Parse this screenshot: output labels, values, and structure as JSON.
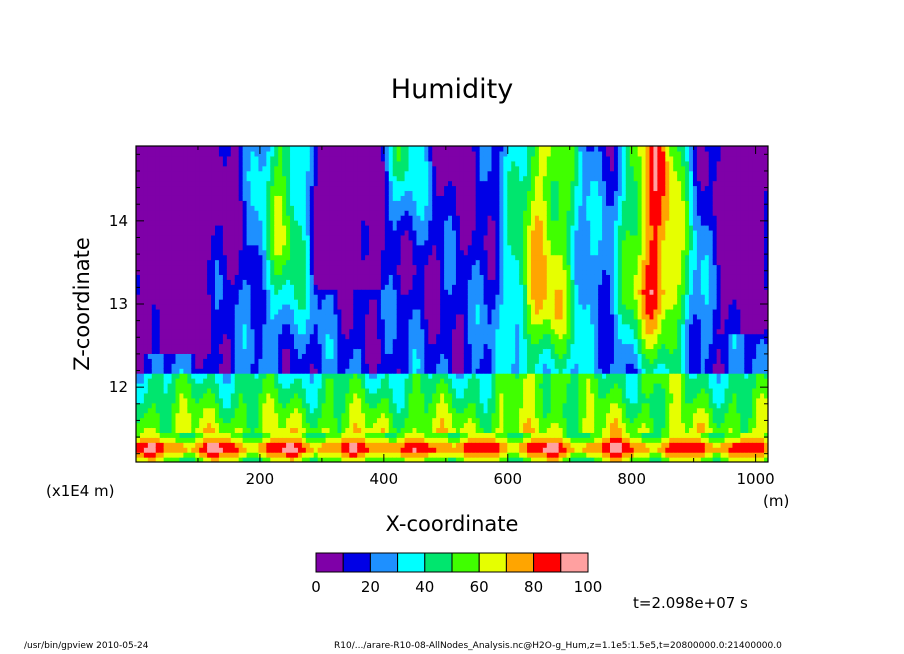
{
  "chart_data": {
    "type": "heatmap",
    "title": "Humidity",
    "xlabel": "X-coordinate",
    "ylabel": "Z-coordinate",
    "x_unit_note": "(x1E4 m)",
    "x_unit": "(m)",
    "xlim": [
      0,
      1020
    ],
    "ylim": [
      11.1,
      14.9
    ],
    "x_ticks": [
      "200",
      "400",
      "600",
      "800",
      "1000"
    ],
    "x_tick_values": [
      200,
      400,
      600,
      800,
      1000
    ],
    "y_ticks": [
      "12",
      "13",
      "14"
    ],
    "y_tick_values": [
      12,
      13,
      14
    ],
    "color_levels": [
      0,
      10,
      20,
      30,
      40,
      50,
      60,
      70,
      80,
      90,
      100
    ],
    "colorbar_labels": [
      "0",
      "20",
      "40",
      "60",
      "80",
      "100"
    ],
    "colorbar_label_values": [
      0,
      20,
      40,
      60,
      80,
      100
    ],
    "colors": [
      "#7f00a8",
      "#0000e6",
      "#1e90ff",
      "#00ffff",
      "#00e66e",
      "#40ff00",
      "#e6ff00",
      "#ffa500",
      "#ff0000",
      "#ffa0a0"
    ],
    "time_label": "t=2.098e+07 s",
    "grid": false
  },
  "footer": {
    "left": "/usr/bin/gpview   2010-05-24",
    "right": "R10/.../arare-R10-08-AllNodes_Analysis.nc@H2O-g_Hum,z=1.1e5:1.5e5,t=20800000.0:21400000.0"
  }
}
